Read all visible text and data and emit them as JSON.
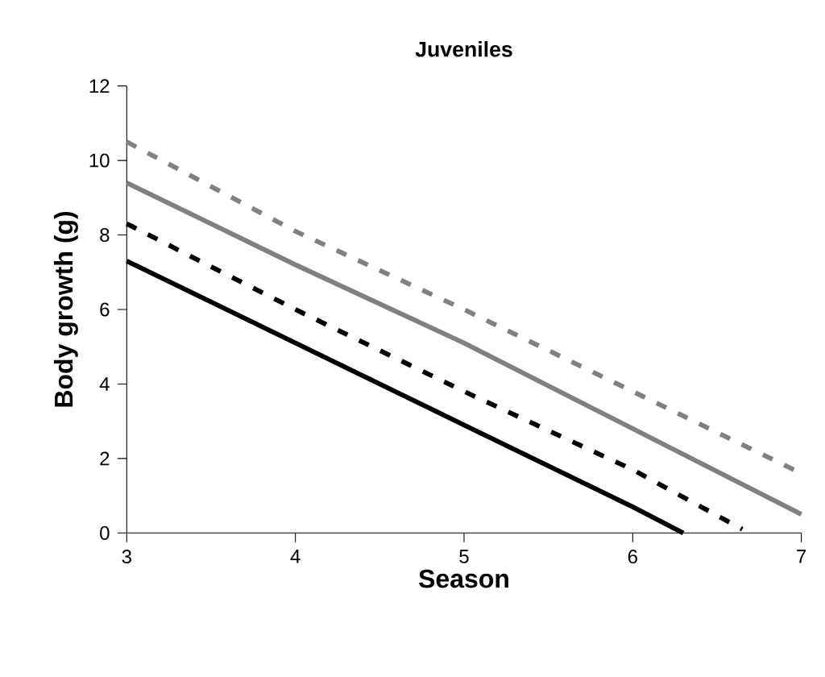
{
  "chart_data": {
    "type": "line",
    "title": "Juveniles",
    "xlabel": "Season",
    "ylabel": "Body growth (g)",
    "xlim": [
      3,
      7
    ],
    "xticks": [
      3,
      4,
      5,
      6,
      7
    ],
    "ylim": [
      0,
      12
    ],
    "yticks": [
      0,
      2,
      4,
      6,
      8,
      10,
      12
    ],
    "marker": "none",
    "series": [
      {
        "color": "#000000",
        "line_style": "solid",
        "x": [
          3,
          4,
          5,
          6,
          6.3
        ],
        "values": [
          7.3,
          5.1,
          2.9,
          0.7,
          0
        ]
      },
      {
        "color": "#000000",
        "line_style": "dashed",
        "x": [
          3,
          4,
          5,
          6,
          6.65
        ],
        "values": [
          8.3,
          6.0,
          3.8,
          1.7,
          0.1
        ]
      },
      {
        "color": "#808080",
        "line_style": "solid",
        "x": [
          3,
          4,
          5,
          6,
          7
        ],
        "values": [
          9.4,
          7.2,
          5.1,
          2.8,
          0.5
        ]
      },
      {
        "color": "#808080",
        "line_style": "dashed",
        "x": [
          3,
          4,
          5,
          6,
          7
        ],
        "values": [
          10.5,
          8.1,
          6.0,
          3.8,
          1.6
        ]
      }
    ]
  }
}
